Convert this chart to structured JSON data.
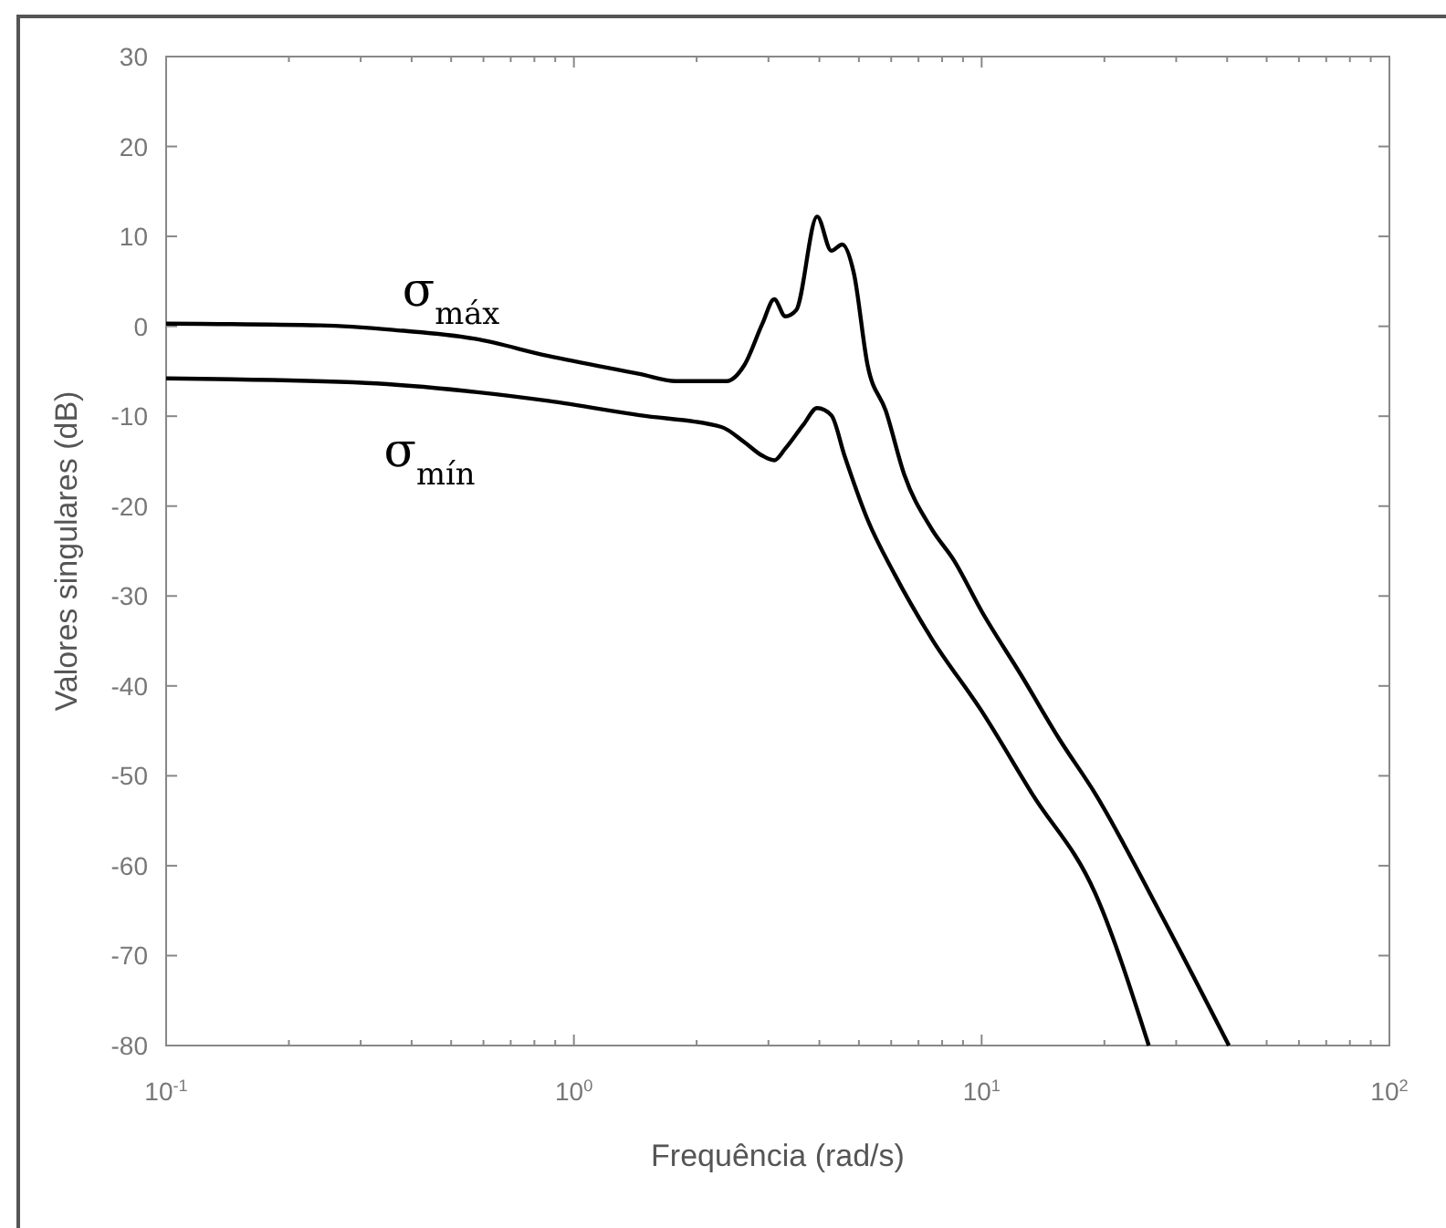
{
  "chart_data": {
    "type": "line",
    "xlabel": "Frequência (rad/s)",
    "ylabel": "Valores singulares (dB)",
    "log": "x",
    "grid": false,
    "marker": "none",
    "line_style": "solid",
    "xlim": [
      0.1,
      100
    ],
    "xticks": [
      {
        "value": 0.1,
        "label": "10$^{-1}$"
      },
      {
        "value": 1,
        "label": "10$^{0}$"
      },
      {
        "value": 10,
        "label": "10$^{1}$"
      },
      {
        "value": 100,
        "label": "10$^{2}$"
      }
    ],
    "ylim": [
      -80,
      30
    ],
    "yticks": [
      -80,
      -70,
      -60,
      -50,
      -40,
      -30,
      -20,
      -10,
      0,
      10,
      20,
      30
    ],
    "series": [
      {
        "name": "σ$_{máx}$",
        "color": "#000000",
        "x": [
          0.1,
          0.239,
          0.361,
          0.573,
          0.865,
          1.45,
          1.78,
          2.37,
          2.62,
          2.9,
          3.1,
          3.3,
          3.51,
          3.95,
          4.28,
          4.55,
          4.86,
          5.25,
          5.82,
          6.46,
          7.53,
          8.57,
          10,
          12.5,
          15.5,
          19,
          27.3,
          40.4
        ],
        "values": [
          0.3,
          0.1,
          -0.4,
          -1.4,
          -3.3,
          -5.3,
          -6.1,
          -6.1,
          -4.3,
          0.3,
          3,
          1.1,
          1.8,
          12.2,
          8.4,
          9.1,
          5.9,
          -4.3,
          -9.4,
          -16.5,
          -22.5,
          -26.1,
          -31.7,
          -38.8,
          -45.9,
          -52,
          -65.1,
          -80
        ]
      },
      {
        "name": "σ$_{mín}$",
        "color": "#000000",
        "x": [
          0.1,
          0.309,
          0.573,
          0.865,
          1.45,
          2.3,
          2.62,
          2.9,
          3.1,
          3.3,
          3.66,
          3.95,
          4.28,
          4.61,
          5.25,
          6.12,
          7.53,
          10,
          13.3,
          19,
          25.7
        ],
        "values": [
          -5.8,
          -6.3,
          -7.3,
          -8.3,
          -9.9,
          -11.2,
          -12.9,
          -14.4,
          -14.9,
          -13.6,
          -10.9,
          -9.1,
          -9.9,
          -14.4,
          -21.5,
          -27.6,
          -34.7,
          -42.8,
          -52,
          -63.1,
          -80
        ]
      }
    ]
  }
}
